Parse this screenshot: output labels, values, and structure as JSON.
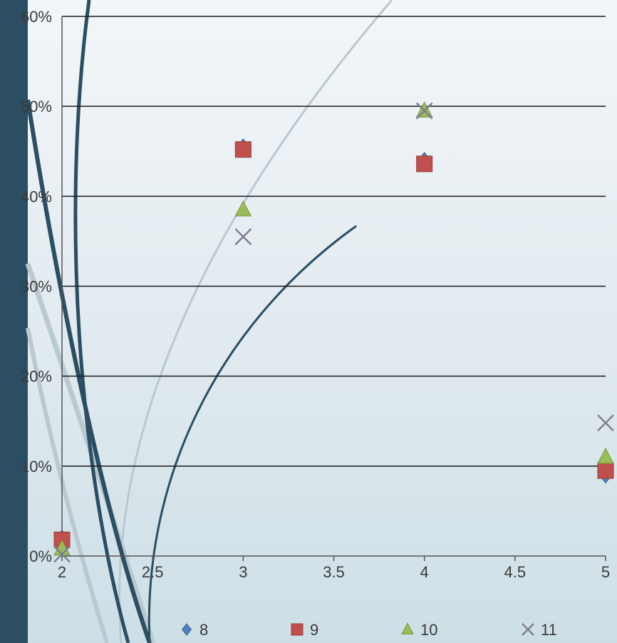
{
  "theme": {
    "band_color": "#2b4e63",
    "swoosh_dark": "#2b4e63",
    "swoosh_light": "#b9c9cf",
    "gridline_color": "#1a1a1a",
    "axis_color": "#555555"
  },
  "chart_data": {
    "type": "scatter",
    "title": "",
    "xlabel": "",
    "ylabel": "",
    "xlim": [
      2,
      5
    ],
    "ylim": [
      0,
      60
    ],
    "x_ticks": [
      "2",
      "2.5",
      "3",
      "3.5",
      "4",
      "4.5",
      "5"
    ],
    "y_ticks": [
      "0%",
      "10%",
      "20%",
      "30%",
      "40%",
      "50%",
      "60%"
    ],
    "grid": true,
    "legend_position": "bottom",
    "series": [
      {
        "name": "8",
        "marker": "diamond",
        "color": "#4f81bd",
        "points": [
          [
            2,
            2
          ],
          [
            3,
            45.5
          ],
          [
            4,
            44
          ],
          [
            5,
            9
          ]
        ]
      },
      {
        "name": "9",
        "marker": "square",
        "color": "#c0504d",
        "points": [
          [
            2,
            1.8
          ],
          [
            3,
            45.2
          ],
          [
            4,
            43.6
          ],
          [
            5,
            9.5
          ]
        ]
      },
      {
        "name": "10",
        "marker": "triangle",
        "color": "#9bbb59",
        "points": [
          [
            2,
            0.8
          ],
          [
            3,
            38.5
          ],
          [
            4,
            49.5
          ],
          [
            5,
            11
          ]
        ]
      },
      {
        "name": "11",
        "marker": "x",
        "color": "#7f7f8f",
        "points": [
          [
            2,
            0.2
          ],
          [
            3,
            35.5
          ],
          [
            4,
            49.5
          ],
          [
            5,
            14.8
          ]
        ]
      }
    ]
  }
}
